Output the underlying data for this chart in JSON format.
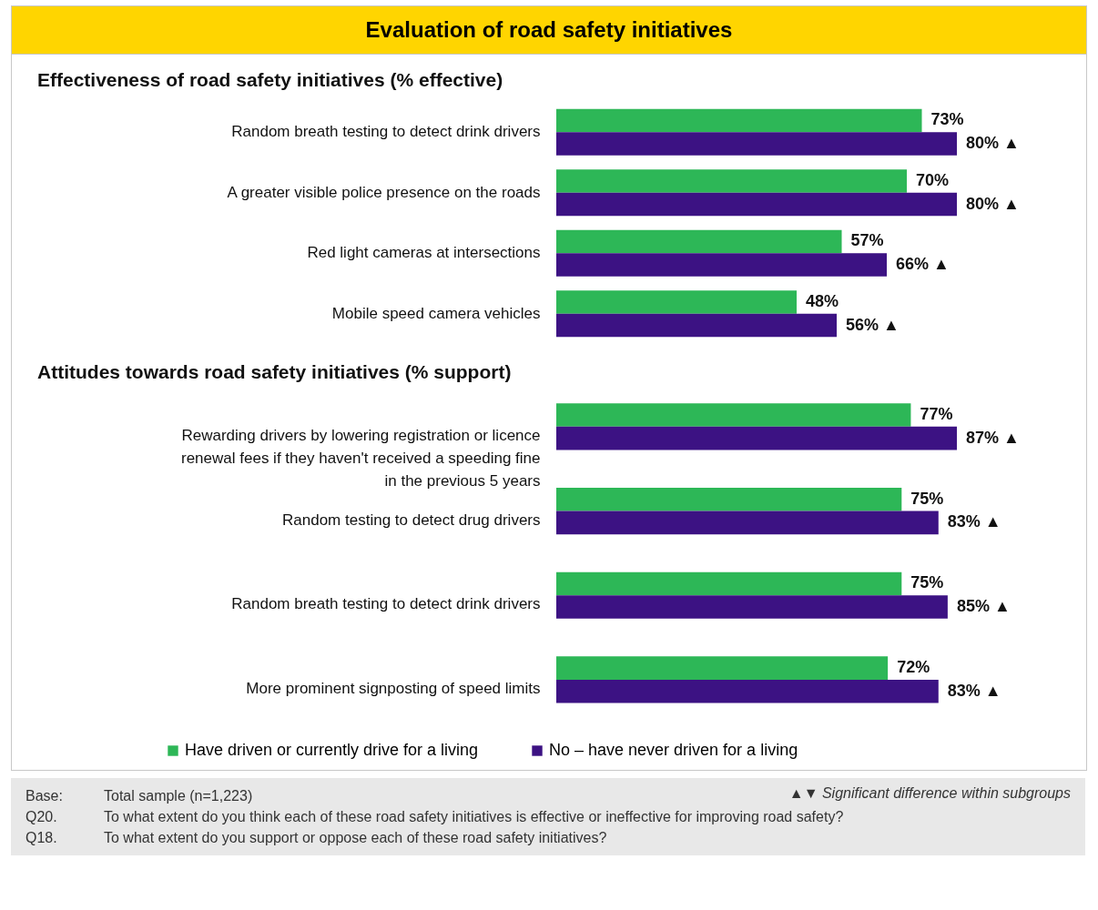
{
  "chart_data": [
    {
      "type": "bar",
      "orientation": "horizontal",
      "title": "Evaluation of road safety initiatives",
      "subtitle": "Effectiveness of road safety initiatives (% effective)",
      "categories": [
        "Random breath testing to detect drink drivers",
        "A greater visible police presence on the roads",
        "Red light cameras at intersections",
        "Mobile speed camera vehicles"
      ],
      "series": [
        {
          "color": "#2db757",
          "values": [
            73,
            70,
            57,
            48
          ],
          "value_labels": [
            "73%",
            "70%",
            "57%",
            "48%"
          ]
        },
        {
          "color": "#3c1283",
          "values": [
            80,
            80,
            66,
            56
          ],
          "value_labels": [
            "80% ▲",
            "80% ▲",
            "66% ▲",
            "56% ▲"
          ]
        }
      ]
    },
    {
      "type": "bar",
      "orientation": "horizontal",
      "subtitle": "Attitudes towards road safety initiatives (% support)",
      "categories": [
        "Rewarding drivers by lowering registration or licence\nrenewal fees if they haven't received a speeding fine\nin the previous 5 years",
        "Random testing to detect drug drivers",
        "Random breath testing to detect drink drivers",
        "More prominent signposting of speed limits"
      ],
      "series": [
        {
          "name": "Have driven or currently drive for a living",
          "color": "#2db757",
          "values": [
            77,
            75,
            75,
            72
          ],
          "value_labels": [
            "77%",
            "75%",
            "75%",
            "72%"
          ]
        },
        {
          "name": "No – have never driven for a living",
          "color": "#3c1283",
          "values": [
            87,
            83,
            85,
            83
          ],
          "value_labels": [
            "87% ▲",
            "83% ▲",
            "85% ▲",
            "83% ▲"
          ]
        }
      ],
      "legend": "bottom",
      "annotations": [
        "Base:\tTotal sample (n=1,223)",
        "▲▼ Significant difference within subgroups",
        "Q20.\tTo what extent do you think each of these road safety initiatives is effective or ineffective for improving road safety?",
        "Q18.\tTo what extent do you support or oppose each of these road safety initiatives?"
      ]
    }
  ]
}
